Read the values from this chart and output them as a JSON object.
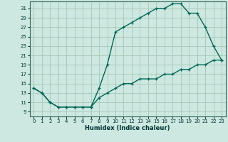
{
  "xlabel": "Humidex (Indice chaleur)",
  "bg_color": "#cce8e0",
  "grid_color": "#aaccbb",
  "line_color": "#006655",
  "xlim": [
    -0.5,
    23.5
  ],
  "ylim": [
    8.0,
    32.5
  ],
  "xticks": [
    0,
    1,
    2,
    3,
    4,
    5,
    6,
    7,
    8,
    9,
    10,
    11,
    12,
    13,
    14,
    15,
    16,
    17,
    18,
    19,
    20,
    21,
    22,
    23
  ],
  "yticks": [
    9,
    11,
    13,
    15,
    17,
    19,
    21,
    23,
    25,
    27,
    29,
    31
  ],
  "line1_x": [
    0,
    1,
    2,
    3,
    4,
    5,
    6,
    7,
    8,
    9,
    10,
    11,
    12,
    13,
    14,
    15,
    16,
    17,
    18,
    19,
    20,
    21,
    22,
    23
  ],
  "line1_y": [
    14,
    13,
    11,
    10,
    10,
    10,
    10,
    10,
    14,
    19,
    26,
    27,
    28,
    29,
    30,
    31,
    31,
    32,
    32,
    30,
    30,
    27,
    23,
    20
  ],
  "line2_x": [
    0,
    1,
    2,
    3,
    4,
    5,
    6,
    7,
    8,
    9,
    10,
    11,
    12,
    13,
    14,
    15,
    16,
    17,
    18,
    19,
    20,
    21,
    22,
    23
  ],
  "line2_y": [
    14,
    13,
    11,
    10,
    10,
    10,
    10,
    10,
    12,
    13,
    14,
    15,
    15,
    16,
    16,
    16,
    17,
    17,
    18,
    18,
    19,
    19,
    20,
    20
  ]
}
